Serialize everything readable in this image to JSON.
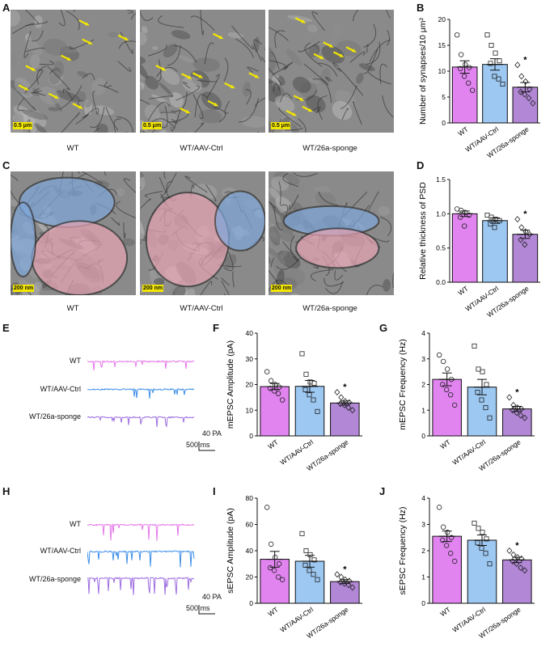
{
  "panel_letters": {
    "A": "A",
    "B": "B",
    "C": "C",
    "D": "D",
    "E": "E",
    "F": "F",
    "G": "G",
    "H": "H",
    "I": "I",
    "J": "J"
  },
  "groups": [
    "WT",
    "WT/AAV-Ctrl",
    "WT/26a-sponge"
  ],
  "em_panel_A": {
    "captions": [
      "WT",
      "WT/AAV-Ctrl",
      "WT/26a-sponge"
    ],
    "scale_label": "0.5 μm"
  },
  "em_panel_C": {
    "captions": [
      "WT",
      "WT/AAV-Ctrl",
      "WT/26a-sponge"
    ],
    "scale_label": "200 nm"
  },
  "traces_E": {
    "labels": [
      "WT",
      "WT/AAV-Ctrl",
      "WT/26a-sponge"
    ],
    "colors": [
      "#e377e8",
      "#3c8ee8",
      "#9c6ce0"
    ],
    "scale_y": "40 PA",
    "scale_x": "500 ms"
  },
  "traces_H": {
    "labels": [
      "WT",
      "WT/AAV-Ctrl",
      "WT/26a-sponge"
    ],
    "colors": [
      "#e377e8",
      "#3c8ee8",
      "#9c6ce0"
    ],
    "scale_y": "40 PA",
    "scale_x": "500 ms"
  },
  "colors": {
    "wt": "#e184f0",
    "ctrl": "#9cc8f2",
    "sponge": "#b287d6",
    "arrow": "#f2e600"
  },
  "chart_data": [
    {
      "id": "B",
      "type": "bar",
      "ylabel": "Number of synapses/10 μm²",
      "ylim": [
        0,
        20
      ],
      "yticks": [
        0,
        5,
        10,
        15,
        20
      ],
      "categories": [
        "WT",
        "WT/AAV-Ctrl",
        "WT/26a-sponge"
      ],
      "values": [
        10.8,
        11.3,
        6.9
      ],
      "errors": [
        1.2,
        1.1,
        0.9
      ],
      "significance": [
        "",
        "",
        "*"
      ],
      "points": [
        [
          17.0,
          13.2,
          11.3,
          10.7,
          10.5,
          9.0,
          7.7,
          6.3
        ],
        [
          17.0,
          15.0,
          13.5,
          12.0,
          11.5,
          9.0,
          8.5,
          7.5
        ],
        [
          11.2,
          9.0,
          8.0,
          6.5,
          6.0,
          5.5,
          4.8,
          3.8
        ]
      ]
    },
    {
      "id": "D",
      "type": "bar",
      "ylabel": "Relative thickness of PSD",
      "ylim": [
        0,
        1.5
      ],
      "yticks": [
        0.0,
        0.5,
        1.0,
        1.5
      ],
      "categories": [
        "WT",
        "WT/AAV-Ctrl",
        "WT/26a-sponge"
      ],
      "values": [
        1.0,
        0.9,
        0.7
      ],
      "errors": [
        0.04,
        0.04,
        0.06
      ],
      "significance": [
        "",
        "",
        "*"
      ],
      "points": [
        [
          1.07,
          1.05,
          1.02,
          0.98,
          0.95,
          0.82
        ],
        [
          0.98,
          0.95,
          0.92,
          0.9,
          0.85,
          0.8
        ],
        [
          0.92,
          0.8,
          0.74,
          0.7,
          0.62,
          0.55
        ]
      ]
    },
    {
      "id": "F",
      "type": "bar",
      "ylabel": "mEPSC Amplitude (pA)",
      "ylim": [
        0,
        40
      ],
      "yticks": [
        0,
        10,
        20,
        30,
        40
      ],
      "categories": [
        "WT",
        "WT/AAV-Ctrl",
        "WT/26a-sponge"
      ],
      "values": [
        19.2,
        19.3,
        12.8
      ],
      "errors": [
        1.2,
        2.3,
        0.8
      ],
      "significance": [
        "",
        "",
        "*"
      ],
      "points": [
        [
          25.0,
          21.5,
          20.0,
          19.0,
          18.5,
          17.5,
          16.5,
          14.0
        ],
        [
          32.0,
          24.0,
          21.0,
          20.5,
          18.0,
          16.0,
          14.0,
          9.5
        ],
        [
          17.0,
          15.0,
          13.5,
          13.0,
          12.5,
          12.0,
          11.0,
          10.0
        ]
      ]
    },
    {
      "id": "G",
      "type": "bar",
      "ylabel": "mEPSC Frequency (Hz)",
      "ylim": [
        0,
        4
      ],
      "yticks": [
        0,
        1,
        2,
        3,
        4
      ],
      "categories": [
        "WT",
        "WT/AAV-Ctrl",
        "WT/26a-sponge"
      ],
      "values": [
        2.2,
        1.9,
        1.05
      ],
      "errors": [
        0.25,
        0.3,
        0.1
      ],
      "significance": [
        "",
        "",
        "*"
      ],
      "points": [
        [
          3.15,
          2.9,
          2.6,
          2.2,
          2.0,
          1.8,
          1.6,
          1.2
        ],
        [
          3.5,
          2.6,
          2.5,
          2.0,
          1.7,
          1.4,
          1.1,
          0.7
        ],
        [
          1.5,
          1.2,
          1.1,
          1.05,
          1.0,
          0.9,
          0.8,
          0.7
        ]
      ]
    },
    {
      "id": "I",
      "type": "bar",
      "ylabel": "sEPSC Amplitude (pA)",
      "ylim": [
        0,
        80
      ],
      "yticks": [
        0,
        20,
        40,
        60,
        80
      ],
      "categories": [
        "WT",
        "WT/AAV-Ctrl",
        "WT/26a-sponge"
      ],
      "values": [
        33.5,
        32.0,
        16.5
      ],
      "errors": [
        6.0,
        4.5,
        1.5
      ],
      "significance": [
        "",
        "",
        "*"
      ],
      "points": [
        [
          73.0,
          45.0,
          35.0,
          30.0,
          27.0,
          25.0,
          20.0,
          18.0
        ],
        [
          53.0,
          40.0,
          37.0,
          33.0,
          29.0,
          25.0,
          22.0,
          18.0
        ],
        [
          22.0,
          20.0,
          18.0,
          17.0,
          16.0,
          15.0,
          14.0,
          12.0
        ]
      ]
    },
    {
      "id": "J",
      "type": "bar",
      "ylabel": "sEPSC Frequency (Hz)",
      "ylim": [
        0,
        4
      ],
      "yticks": [
        0,
        1,
        2,
        3,
        4
      ],
      "categories": [
        "WT",
        "WT/AAV-Ctrl",
        "WT/26a-sponge"
      ],
      "values": [
        2.55,
        2.4,
        1.65
      ],
      "errors": [
        0.2,
        0.2,
        0.1
      ],
      "significance": [
        "",
        "",
        "*"
      ],
      "points": [
        [
          3.65,
          2.9,
          2.7,
          2.5,
          2.4,
          2.2,
          1.9,
          1.6
        ],
        [
          3.05,
          2.85,
          2.7,
          2.45,
          2.3,
          2.1,
          1.9,
          1.5
        ],
        [
          2.0,
          1.85,
          1.75,
          1.7,
          1.6,
          1.5,
          1.35,
          1.25
        ]
      ]
    }
  ]
}
